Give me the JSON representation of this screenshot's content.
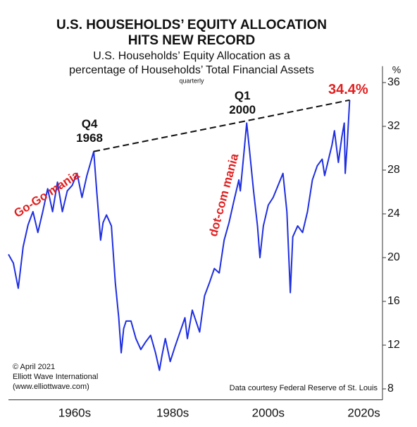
{
  "chart_data": {
    "type": "line",
    "title": [
      "U.S. HOUSEHOLDS’ EQUITY ALLOCATION",
      "HITS NEW RECORD"
    ],
    "subtitle": [
      "U.S. Households’ Equity Allocation as a",
      "percentage of Households’ Total Financial Assets"
    ],
    "frequency_note": "quarterly",
    "y_unit_label": "%",
    "xlim": [
      1951.5,
      2027.8
    ],
    "xticks": [
      {
        "value": 1965,
        "label": "1960s"
      },
      {
        "value": 1985,
        "label": "1980s"
      },
      {
        "value": 2004.5,
        "label": "2000s"
      },
      {
        "value": 2024,
        "label": "2020s"
      }
    ],
    "ylim": [
      7,
      37.5
    ],
    "yticks": [
      8,
      12,
      16,
      20,
      24,
      28,
      32,
      36
    ],
    "x": [
      1951.5,
      1952.5,
      1953.5,
      1954.5,
      1955.5,
      1956.5,
      1957.5,
      1958.5,
      1959.5,
      1960.5,
      1961.5,
      1962.5,
      1963.5,
      1964.5,
      1965.5,
      1966.5,
      1967.5,
      1968.9,
      1969.5,
      1970.3,
      1970.8,
      1971.5,
      1972.5,
      1973.3,
      1974.0,
      1974.5,
      1975.0,
      1975.5,
      1976.5,
      1977.5,
      1978.5,
      1979.5,
      1980.5,
      1981.5,
      1982.3,
      1982.8,
      1983.5,
      1984.5,
      1985.5,
      1986.5,
      1987.5,
      1988.0,
      1989.0,
      1990.5,
      1991.5,
      1992.5,
      1993.5,
      1994.5,
      1995.5,
      1996.5,
      1997.5,
      1998.5,
      1998.8,
      1999.5,
      2000.1,
      2000.7,
      2001.5,
      2002.3,
      2002.8,
      2003.5,
      2004.5,
      2005.5,
      2006.5,
      2007.5,
      2008.3,
      2009.0,
      2009.5,
      2010.5,
      2011.5,
      2012.5,
      2013.5,
      2014.5,
      2015.5,
      2016.0,
      2016.8,
      2017.5,
      2018.0,
      2018.8,
      2019.5,
      2020.0,
      2020.2,
      2020.6,
      2021.1
    ],
    "series": [
      {
        "color": "#1f2fe0",
        "values": [
          20.3,
          19.5,
          17.2,
          21,
          23,
          24.2,
          22.3,
          24.2,
          26.3,
          24.2,
          26.9,
          24.2,
          26.1,
          26.6,
          27.7,
          25.5,
          27.5,
          29.7,
          26.1,
          21.6,
          23.2,
          23.9,
          22.9,
          17.7,
          14.5,
          11.3,
          13.5,
          14.2,
          14.2,
          12.6,
          11.6,
          12.3,
          12.9,
          11.3,
          9.7,
          11,
          12.6,
          10.5,
          11.9,
          13.2,
          14.5,
          12.6,
          15.2,
          13.2,
          16.5,
          17.7,
          19,
          18.6,
          21.6,
          23.2,
          25.2,
          27.1,
          26.1,
          29.4,
          32.3,
          29.7,
          26.1,
          22.9,
          20,
          22.9,
          24.8,
          25.5,
          26.6,
          27.7,
          24.2,
          16.8,
          21.9,
          22.9,
          22.3,
          24.2,
          27.1,
          28.4,
          29,
          27.5,
          29,
          30.3,
          31.6,
          28.7,
          31,
          32.3,
          27.7,
          30.3,
          34.4
        ],
        "value_labels": [
          null,
          null,
          null,
          null,
          null,
          null,
          null,
          null,
          null,
          null,
          null,
          null,
          null,
          null,
          null,
          null,
          null,
          null,
          null,
          null,
          null,
          null,
          null,
          null,
          null,
          null,
          null,
          null,
          null,
          null,
          null,
          null,
          null,
          null,
          null,
          null,
          null,
          null,
          null,
          null,
          null,
          null,
          null,
          null,
          null,
          null,
          null,
          null,
          null,
          null,
          null,
          null,
          null,
          null,
          null,
          null,
          null,
          null,
          null,
          null,
          null,
          null,
          null,
          null,
          null,
          null,
          null,
          null,
          null,
          null,
          null,
          null,
          null,
          null,
          null,
          null,
          null,
          null,
          null,
          null,
          null,
          null,
          "34.4%"
        ]
      }
    ],
    "annotations": [
      {
        "text": [
          "Q4",
          "1968"
        ],
        "point": 17
      },
      {
        "text": [
          "Q1",
          "2000"
        ],
        "point": 54
      },
      {
        "text": "Go-Go mania",
        "color": "#e02020"
      },
      {
        "text": "dot-com mania",
        "color": "#e02020"
      }
    ],
    "trend_line": [
      17,
      82
    ],
    "credits": [
      "© April 2021",
      "Elliott Wave International",
      "(www.elliottwave.com)"
    ],
    "source": "Data courtesy Federal Reserve of St. Louis"
  }
}
